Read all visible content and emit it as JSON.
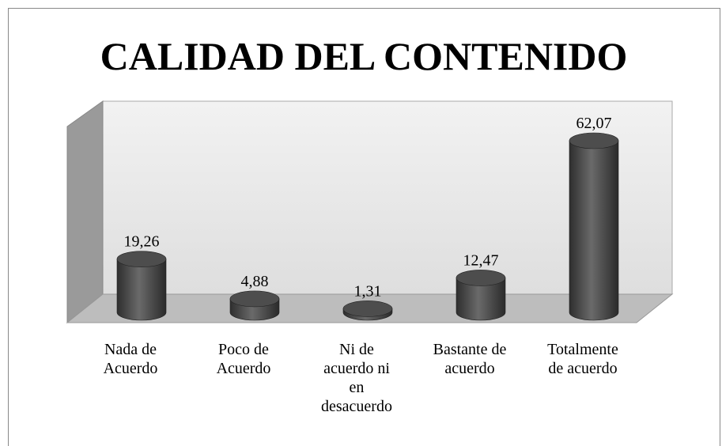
{
  "chart_data": {
    "type": "bar3d",
    "title": "CALIDAD DEL CONTENIDO",
    "categories": [
      "Nada de Acuerdo",
      "Poco de Acuerdo",
      "Ni de acuerdo ni en desacuerdo",
      "Bastante de acuerdo",
      "Totalmente de acuerdo"
    ],
    "values": [
      19.26,
      4.88,
      1.31,
      12.47,
      62.07
    ],
    "value_labels": [
      "19,26",
      "4,88",
      "1,31",
      "12,47",
      "62,07"
    ],
    "color": "#4d4d4d"
  }
}
